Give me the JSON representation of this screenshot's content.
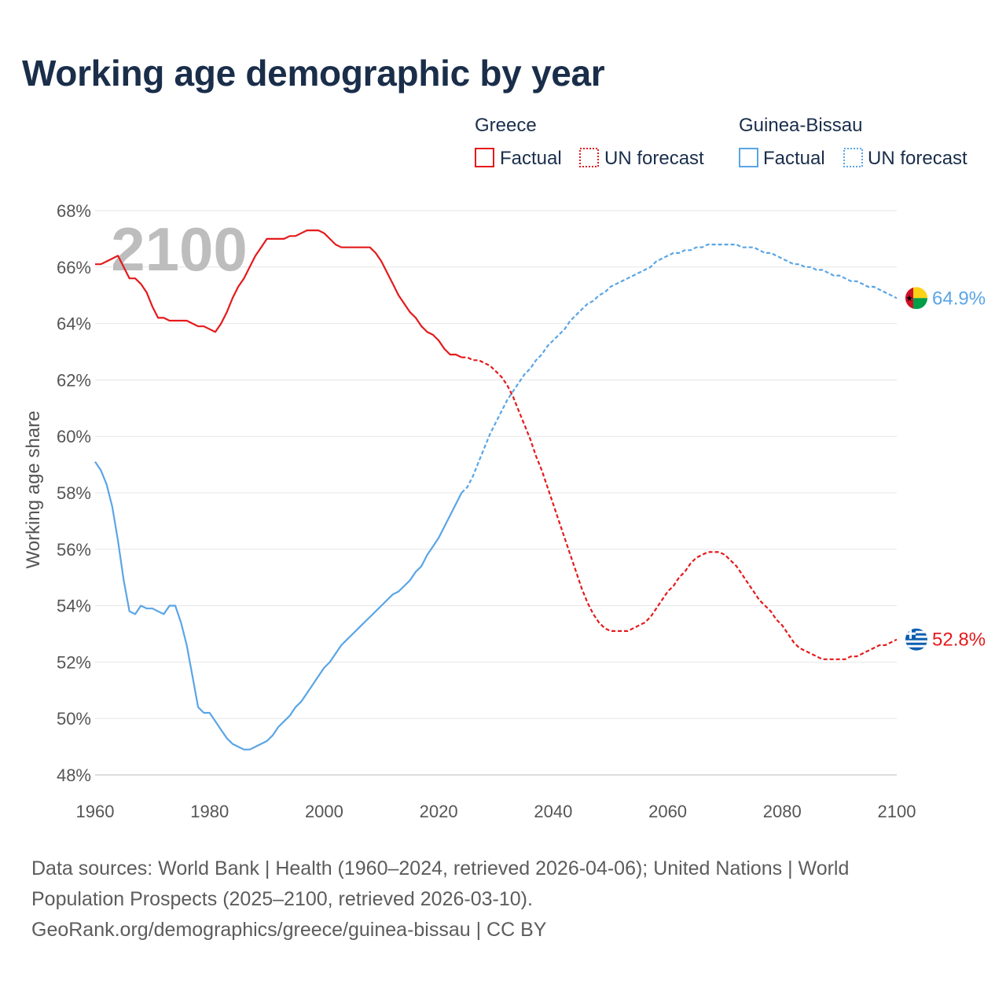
{
  "title": "Working age demographic by year",
  "footer": {
    "line1": "Data sources: World Bank | Health (1960–2024, retrieved 2026-04-06); United Nations | World",
    "line2": "Population Prospects (2025–2100, retrieved 2026-03-10).",
    "line3": "GeoRank.org/demographics/greece/guinea-bissau | CC BY"
  },
  "chart_data": {
    "type": "line",
    "ylabel": "Working age share",
    "year_watermark": "2100",
    "xlim": [
      1960,
      2100
    ],
    "ylim": [
      48,
      68
    ],
    "x_ticks": [
      "1960",
      "1980",
      "2000",
      "2020",
      "2040",
      "2060",
      "2080",
      "2100"
    ],
    "y_ticks": [
      "48%",
      "50%",
      "52%",
      "54%",
      "56%",
      "58%",
      "60%",
      "62%",
      "64%",
      "66%",
      "68%"
    ],
    "y_tick_values": [
      48,
      50,
      52,
      54,
      56,
      58,
      60,
      62,
      64,
      66,
      68
    ],
    "x_tick_values": [
      1960,
      1980,
      2000,
      2020,
      2040,
      2060,
      2080,
      2100
    ],
    "legend": {
      "groups": [
        "Greece",
        "Guinea-Bissau"
      ],
      "factual_label": "Factual",
      "forecast_label": "UN forecast"
    },
    "series": [
      {
        "name": "Greece",
        "color": "#e41a1c",
        "end_label": "52.8%",
        "factual": [
          [
            1960,
            66.1
          ],
          [
            1961,
            66.1
          ],
          [
            1962,
            66.2
          ],
          [
            1963,
            66.3
          ],
          [
            1964,
            66.4
          ],
          [
            1965,
            66.0
          ],
          [
            1966,
            65.6
          ],
          [
            1967,
            65.6
          ],
          [
            1968,
            65.4
          ],
          [
            1969,
            65.1
          ],
          [
            1970,
            64.6
          ],
          [
            1971,
            64.2
          ],
          [
            1972,
            64.2
          ],
          [
            1973,
            64.1
          ],
          [
            1974,
            64.1
          ],
          [
            1975,
            64.1
          ],
          [
            1976,
            64.1
          ],
          [
            1977,
            64.0
          ],
          [
            1978,
            63.9
          ],
          [
            1979,
            63.9
          ],
          [
            1980,
            63.8
          ],
          [
            1981,
            63.7
          ],
          [
            1982,
            64.0
          ],
          [
            1983,
            64.4
          ],
          [
            1984,
            64.9
          ],
          [
            1985,
            65.3
          ],
          [
            1986,
            65.6
          ],
          [
            1987,
            66.0
          ],
          [
            1988,
            66.4
          ],
          [
            1989,
            66.7
          ],
          [
            1990,
            67.0
          ],
          [
            1991,
            67.0
          ],
          [
            1992,
            67.0
          ],
          [
            1993,
            67.0
          ],
          [
            1994,
            67.1
          ],
          [
            1995,
            67.1
          ],
          [
            1996,
            67.2
          ],
          [
            1997,
            67.3
          ],
          [
            1998,
            67.3
          ],
          [
            1999,
            67.3
          ],
          [
            2000,
            67.2
          ],
          [
            2001,
            67.0
          ],
          [
            2002,
            66.8
          ],
          [
            2003,
            66.7
          ],
          [
            2004,
            66.7
          ],
          [
            2005,
            66.7
          ],
          [
            2006,
            66.7
          ],
          [
            2007,
            66.7
          ],
          [
            2008,
            66.7
          ],
          [
            2009,
            66.5
          ],
          [
            2010,
            66.2
          ],
          [
            2011,
            65.8
          ],
          [
            2012,
            65.4
          ],
          [
            2013,
            65.0
          ],
          [
            2014,
            64.7
          ],
          [
            2015,
            64.4
          ],
          [
            2016,
            64.2
          ],
          [
            2017,
            63.9
          ],
          [
            2018,
            63.7
          ],
          [
            2019,
            63.6
          ],
          [
            2020,
            63.4
          ],
          [
            2021,
            63.1
          ],
          [
            2022,
            62.9
          ],
          [
            2023,
            62.9
          ],
          [
            2024,
            62.8
          ]
        ],
        "forecast": [
          [
            2024,
            62.8
          ],
          [
            2025,
            62.8
          ],
          [
            2026,
            62.7
          ],
          [
            2027,
            62.7
          ],
          [
            2028,
            62.6
          ],
          [
            2029,
            62.5
          ],
          [
            2030,
            62.3
          ],
          [
            2031,
            62.1
          ],
          [
            2032,
            61.8
          ],
          [
            2033,
            61.4
          ],
          [
            2034,
            60.9
          ],
          [
            2035,
            60.4
          ],
          [
            2036,
            59.9
          ],
          [
            2037,
            59.3
          ],
          [
            2038,
            58.8
          ],
          [
            2039,
            58.2
          ],
          [
            2040,
            57.6
          ],
          [
            2041,
            57.0
          ],
          [
            2042,
            56.4
          ],
          [
            2043,
            55.8
          ],
          [
            2044,
            55.2
          ],
          [
            2045,
            54.6
          ],
          [
            2046,
            54.1
          ],
          [
            2047,
            53.7
          ],
          [
            2048,
            53.4
          ],
          [
            2049,
            53.2
          ],
          [
            2050,
            53.1
          ],
          [
            2051,
            53.1
          ],
          [
            2052,
            53.1
          ],
          [
            2053,
            53.1
          ],
          [
            2054,
            53.2
          ],
          [
            2055,
            53.3
          ],
          [
            2056,
            53.4
          ],
          [
            2057,
            53.6
          ],
          [
            2058,
            53.9
          ],
          [
            2059,
            54.2
          ],
          [
            2060,
            54.5
          ],
          [
            2061,
            54.7
          ],
          [
            2062,
            55.0
          ],
          [
            2063,
            55.2
          ],
          [
            2064,
            55.5
          ],
          [
            2065,
            55.7
          ],
          [
            2066,
            55.8
          ],
          [
            2067,
            55.9
          ],
          [
            2068,
            55.9
          ],
          [
            2069,
            55.9
          ],
          [
            2070,
            55.8
          ],
          [
            2071,
            55.6
          ],
          [
            2072,
            55.4
          ],
          [
            2073,
            55.1
          ],
          [
            2074,
            54.8
          ],
          [
            2075,
            54.5
          ],
          [
            2076,
            54.2
          ],
          [
            2077,
            54.0
          ],
          [
            2078,
            53.8
          ],
          [
            2079,
            53.5
          ],
          [
            2080,
            53.3
          ],
          [
            2081,
            53.0
          ],
          [
            2082,
            52.7
          ],
          [
            2083,
            52.5
          ],
          [
            2084,
            52.4
          ],
          [
            2085,
            52.3
          ],
          [
            2086,
            52.2
          ],
          [
            2087,
            52.1
          ],
          [
            2088,
            52.1
          ],
          [
            2089,
            52.1
          ],
          [
            2090,
            52.1
          ],
          [
            2091,
            52.1
          ],
          [
            2092,
            52.2
          ],
          [
            2093,
            52.2
          ],
          [
            2094,
            52.3
          ],
          [
            2095,
            52.4
          ],
          [
            2096,
            52.5
          ],
          [
            2097,
            52.6
          ],
          [
            2098,
            52.6
          ],
          [
            2099,
            52.7
          ],
          [
            2100,
            52.8
          ]
        ]
      },
      {
        "name": "Guinea-Bissau",
        "color": "#5aa5e6",
        "end_label": "64.9%",
        "factual": [
          [
            1960,
            59.1
          ],
          [
            1961,
            58.8
          ],
          [
            1962,
            58.3
          ],
          [
            1963,
            57.5
          ],
          [
            1964,
            56.3
          ],
          [
            1965,
            54.9
          ],
          [
            1966,
            53.8
          ],
          [
            1967,
            53.7
          ],
          [
            1968,
            54.0
          ],
          [
            1969,
            53.9
          ],
          [
            1970,
            53.9
          ],
          [
            1971,
            53.8
          ],
          [
            1972,
            53.7
          ],
          [
            1973,
            54.0
          ],
          [
            1974,
            54.0
          ],
          [
            1975,
            53.4
          ],
          [
            1976,
            52.6
          ],
          [
            1977,
            51.5
          ],
          [
            1978,
            50.4
          ],
          [
            1979,
            50.2
          ],
          [
            1980,
            50.2
          ],
          [
            1981,
            49.9
          ],
          [
            1982,
            49.6
          ],
          [
            1983,
            49.3
          ],
          [
            1984,
            49.1
          ],
          [
            1985,
            49.0
          ],
          [
            1986,
            48.9
          ],
          [
            1987,
            48.9
          ],
          [
            1988,
            49.0
          ],
          [
            1989,
            49.1
          ],
          [
            1990,
            49.2
          ],
          [
            1991,
            49.4
          ],
          [
            1992,
            49.7
          ],
          [
            1993,
            49.9
          ],
          [
            1994,
            50.1
          ],
          [
            1995,
            50.4
          ],
          [
            1996,
            50.6
          ],
          [
            1997,
            50.9
          ],
          [
            1998,
            51.2
          ],
          [
            1999,
            51.5
          ],
          [
            2000,
            51.8
          ],
          [
            2001,
            52.0
          ],
          [
            2002,
            52.3
          ],
          [
            2003,
            52.6
          ],
          [
            2004,
            52.8
          ],
          [
            2005,
            53.0
          ],
          [
            2006,
            53.2
          ],
          [
            2007,
            53.4
          ],
          [
            2008,
            53.6
          ],
          [
            2009,
            53.8
          ],
          [
            2010,
            54.0
          ],
          [
            2011,
            54.2
          ],
          [
            2012,
            54.4
          ],
          [
            2013,
            54.5
          ],
          [
            2014,
            54.7
          ],
          [
            2015,
            54.9
          ],
          [
            2016,
            55.2
          ],
          [
            2017,
            55.4
          ],
          [
            2018,
            55.8
          ],
          [
            2019,
            56.1
          ],
          [
            2020,
            56.4
          ],
          [
            2021,
            56.8
          ],
          [
            2022,
            57.2
          ],
          [
            2023,
            57.6
          ],
          [
            2024,
            58.0
          ]
        ],
        "forecast": [
          [
            2024,
            58.0
          ],
          [
            2025,
            58.2
          ],
          [
            2026,
            58.6
          ],
          [
            2027,
            59.1
          ],
          [
            2028,
            59.6
          ],
          [
            2029,
            60.1
          ],
          [
            2030,
            60.5
          ],
          [
            2031,
            60.9
          ],
          [
            2032,
            61.3
          ],
          [
            2033,
            61.6
          ],
          [
            2034,
            61.9
          ],
          [
            2035,
            62.2
          ],
          [
            2036,
            62.4
          ],
          [
            2037,
            62.7
          ],
          [
            2038,
            62.9
          ],
          [
            2039,
            63.2
          ],
          [
            2040,
            63.4
          ],
          [
            2041,
            63.6
          ],
          [
            2042,
            63.8
          ],
          [
            2043,
            64.1
          ],
          [
            2044,
            64.3
          ],
          [
            2045,
            64.5
          ],
          [
            2046,
            64.7
          ],
          [
            2047,
            64.8
          ],
          [
            2048,
            65.0
          ],
          [
            2049,
            65.1
          ],
          [
            2050,
            65.3
          ],
          [
            2051,
            65.4
          ],
          [
            2052,
            65.5
          ],
          [
            2053,
            65.6
          ],
          [
            2054,
            65.7
          ],
          [
            2055,
            65.8
          ],
          [
            2056,
            65.9
          ],
          [
            2057,
            66.0
          ],
          [
            2058,
            66.2
          ],
          [
            2059,
            66.3
          ],
          [
            2060,
            66.4
          ],
          [
            2061,
            66.5
          ],
          [
            2062,
            66.5
          ],
          [
            2063,
            66.6
          ],
          [
            2064,
            66.6
          ],
          [
            2065,
            66.7
          ],
          [
            2066,
            66.7
          ],
          [
            2067,
            66.8
          ],
          [
            2068,
            66.8
          ],
          [
            2069,
            66.8
          ],
          [
            2070,
            66.8
          ],
          [
            2071,
            66.8
          ],
          [
            2072,
            66.8
          ],
          [
            2073,
            66.7
          ],
          [
            2074,
            66.7
          ],
          [
            2075,
            66.7
          ],
          [
            2076,
            66.6
          ],
          [
            2077,
            66.5
          ],
          [
            2078,
            66.5
          ],
          [
            2079,
            66.4
          ],
          [
            2080,
            66.3
          ],
          [
            2081,
            66.2
          ],
          [
            2082,
            66.1
          ],
          [
            2083,
            66.1
          ],
          [
            2084,
            66.0
          ],
          [
            2085,
            66.0
          ],
          [
            2086,
            65.9
          ],
          [
            2087,
            65.9
          ],
          [
            2088,
            65.8
          ],
          [
            2089,
            65.7
          ],
          [
            2090,
            65.7
          ],
          [
            2091,
            65.6
          ],
          [
            2092,
            65.5
          ],
          [
            2093,
            65.5
          ],
          [
            2094,
            65.4
          ],
          [
            2095,
            65.3
          ],
          [
            2096,
            65.3
          ],
          [
            2097,
            65.2
          ],
          [
            2098,
            65.1
          ],
          [
            2099,
            65.0
          ],
          [
            2100,
            64.9
          ]
        ]
      }
    ]
  }
}
